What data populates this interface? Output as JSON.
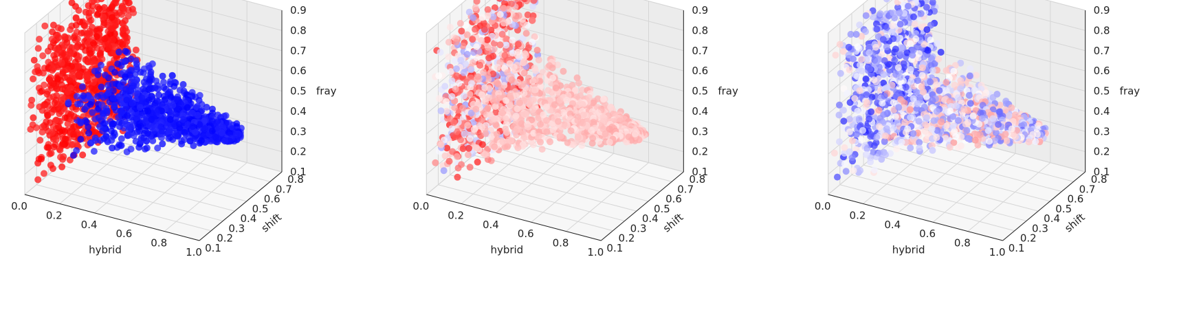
{
  "chart_data": [
    {
      "type": "scatter3d",
      "title": "",
      "xlabel": "hybrid",
      "ylabel": "shift",
      "zlabel": "fray",
      "xlim": [
        0.0,
        1.0
      ],
      "ylim": [
        0.1,
        0.8
      ],
      "zlim": [
        0.1,
        0.9
      ],
      "x_ticks": [
        "0.0",
        "0.2",
        "0.4",
        "0.6",
        "0.8",
        "1.0"
      ],
      "y_ticks": [
        "0.1",
        "0.2",
        "0.3",
        "0.4",
        "0.5",
        "0.6",
        "0.7",
        "0.8"
      ],
      "z_ticks": [
        "0.1",
        "0.2",
        "0.3",
        "0.4",
        "0.5",
        "0.6",
        "0.7",
        "0.8",
        "0.9"
      ],
      "grid": true,
      "colormap": "bwr",
      "clusters": [
        {
          "name": "vertical",
          "x": [
            0.02,
            0.18
          ],
          "y": [
            0.1,
            0.8
          ],
          "z": [
            0.12,
            0.9
          ],
          "color_value": [
            0.92,
            1.0
          ]
        },
        {
          "name": "wedge",
          "x": [
            0.18,
            1.0
          ],
          "y": [
            0.2,
            0.7
          ],
          "z": [
            0.3,
            0.6
          ],
          "color_value": [
            0.0,
            0.08
          ]
        }
      ]
    },
    {
      "type": "scatter3d",
      "title": "",
      "xlabel": "hybrid",
      "ylabel": "shift",
      "zlabel": "fray",
      "xlim": [
        0.0,
        1.0
      ],
      "ylim": [
        0.1,
        0.8
      ],
      "zlim": [
        0.1,
        0.9
      ],
      "x_ticks": [
        "0.0",
        "0.2",
        "0.4",
        "0.6",
        "0.8",
        "1.0"
      ],
      "y_ticks": [
        "0.1",
        "0.2",
        "0.3",
        "0.4",
        "0.5",
        "0.6",
        "0.7",
        "0.8"
      ],
      "z_ticks": [
        "0.1",
        "0.2",
        "0.3",
        "0.4",
        "0.5",
        "0.6",
        "0.7",
        "0.8",
        "0.9"
      ],
      "grid": true,
      "colormap": "bwr",
      "clusters": [
        {
          "name": "vertical",
          "x": [
            0.02,
            0.18
          ],
          "y": [
            0.1,
            0.8
          ],
          "z": [
            0.12,
            0.9
          ],
          "color_value": [
            0.3,
            0.95
          ]
        },
        {
          "name": "wedge",
          "x": [
            0.18,
            1.0
          ],
          "y": [
            0.2,
            0.7
          ],
          "z": [
            0.3,
            0.6
          ],
          "color_value": [
            0.55,
            0.68
          ]
        }
      ]
    },
    {
      "type": "scatter3d",
      "title": "",
      "xlabel": "hybrid",
      "ylabel": "shift",
      "zlabel": "fray",
      "xlim": [
        0.0,
        1.0
      ],
      "ylim": [
        0.1,
        0.8
      ],
      "zlim": [
        0.1,
        0.9
      ],
      "x_ticks": [
        "0.0",
        "0.2",
        "0.4",
        "0.6",
        "0.8",
        "1.0"
      ],
      "y_ticks": [
        "0.1",
        "0.2",
        "0.3",
        "0.4",
        "0.5",
        "0.6",
        "0.7",
        "0.8"
      ],
      "z_ticks": [
        "0.1",
        "0.2",
        "0.3",
        "0.4",
        "0.5",
        "0.6",
        "0.7",
        "0.8",
        "0.9"
      ],
      "grid": true,
      "colormap": "bwr",
      "clusters": [
        {
          "name": "vertical",
          "x": [
            0.02,
            0.18
          ],
          "y": [
            0.1,
            0.8
          ],
          "z": [
            0.12,
            0.9
          ],
          "color_value": [
            0.05,
            0.6
          ]
        },
        {
          "name": "wedge",
          "x": [
            0.18,
            1.0
          ],
          "y": [
            0.2,
            0.7
          ],
          "z": [
            0.3,
            0.6
          ],
          "color_value": [
            0.2,
            0.7
          ]
        }
      ]
    }
  ]
}
